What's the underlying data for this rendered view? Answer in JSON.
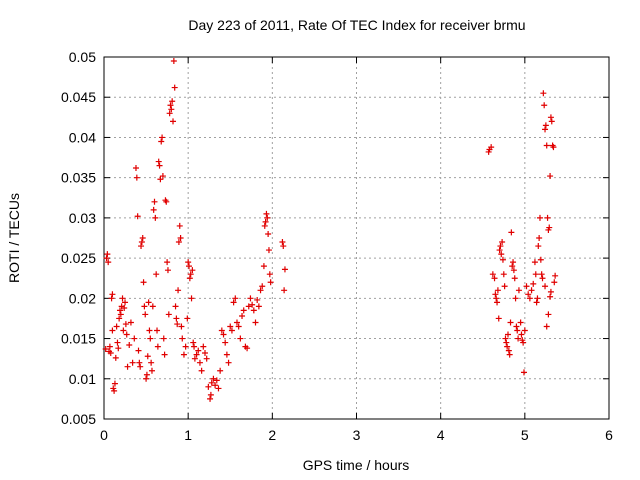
{
  "chart_data": {
    "type": "scatter",
    "title": "Day 223 of 2011, Rate Of TEC Index for receiver brmu",
    "xlabel": "GPS time / hours",
    "ylabel": "ROTI / TECUs",
    "xlim": [
      0,
      6
    ],
    "ylim": [
      0.005,
      0.05
    ],
    "xticks": [
      "0",
      "1",
      "2",
      "3",
      "4",
      "5",
      "6"
    ],
    "yticks": [
      "0.005",
      "0.01",
      "0.015",
      "0.02",
      "0.025",
      "0.03",
      "0.035",
      "0.04",
      "0.045",
      "0.05"
    ],
    "grid": true,
    "marker": "+",
    "color": "#e00000",
    "series": [
      {
        "name": "ROTI",
        "points": [
          [
            0.02,
            0.0137
          ],
          [
            0.03,
            0.025
          ],
          [
            0.04,
            0.0255
          ],
          [
            0.05,
            0.0245
          ],
          [
            0.06,
            0.0134
          ],
          [
            0.07,
            0.014
          ],
          [
            0.08,
            0.0132
          ],
          [
            0.09,
            0.02
          ],
          [
            0.1,
            0.0205
          ],
          [
            0.1,
            0.016
          ],
          [
            0.11,
            0.0088
          ],
          [
            0.12,
            0.0085
          ],
          [
            0.13,
            0.0094
          ],
          [
            0.14,
            0.0126
          ],
          [
            0.15,
            0.0165
          ],
          [
            0.16,
            0.0145
          ],
          [
            0.17,
            0.0138
          ],
          [
            0.18,
            0.0175
          ],
          [
            0.19,
            0.0185
          ],
          [
            0.2,
            0.018
          ],
          [
            0.21,
            0.019
          ],
          [
            0.22,
            0.02
          ],
          [
            0.23,
            0.016
          ],
          [
            0.24,
            0.0188
          ],
          [
            0.25,
            0.0195
          ],
          [
            0.26,
            0.0168
          ],
          [
            0.27,
            0.0155
          ],
          [
            0.28,
            0.0115
          ],
          [
            0.3,
            0.0142
          ],
          [
            0.32,
            0.017
          ],
          [
            0.34,
            0.012
          ],
          [
            0.36,
            0.015
          ],
          [
            0.38,
            0.0362
          ],
          [
            0.39,
            0.035
          ],
          [
            0.4,
            0.0302
          ],
          [
            0.41,
            0.0135
          ],
          [
            0.42,
            0.012
          ],
          [
            0.43,
            0.0115
          ],
          [
            0.44,
            0.0265
          ],
          [
            0.45,
            0.027
          ],
          [
            0.46,
            0.0275
          ],
          [
            0.47,
            0.022
          ],
          [
            0.48,
            0.019
          ],
          [
            0.49,
            0.018
          ],
          [
            0.5,
            0.01
          ],
          [
            0.51,
            0.0105
          ],
          [
            0.52,
            0.0128
          ],
          [
            0.53,
            0.0195
          ],
          [
            0.54,
            0.016
          ],
          [
            0.55,
            0.015
          ],
          [
            0.56,
            0.012
          ],
          [
            0.57,
            0.011
          ],
          [
            0.58,
            0.019
          ],
          [
            0.59,
            0.031
          ],
          [
            0.6,
            0.032
          ],
          [
            0.61,
            0.03
          ],
          [
            0.62,
            0.023
          ],
          [
            0.63,
            0.016
          ],
          [
            0.64,
            0.014
          ],
          [
            0.65,
            0.037
          ],
          [
            0.66,
            0.0365
          ],
          [
            0.67,
            0.0348
          ],
          [
            0.68,
            0.0395
          ],
          [
            0.69,
            0.04
          ],
          [
            0.7,
            0.0352
          ],
          [
            0.71,
            0.015
          ],
          [
            0.72,
            0.013
          ],
          [
            0.73,
            0.0322
          ],
          [
            0.74,
            0.032
          ],
          [
            0.75,
            0.0245
          ],
          [
            0.76,
            0.0235
          ],
          [
            0.77,
            0.018
          ],
          [
            0.78,
            0.043
          ],
          [
            0.79,
            0.044
          ],
          [
            0.8,
            0.0435
          ],
          [
            0.81,
            0.0445
          ],
          [
            0.82,
            0.042
          ],
          [
            0.83,
            0.0495
          ],
          [
            0.84,
            0.0462
          ],
          [
            0.85,
            0.019
          ],
          [
            0.86,
            0.0175
          ],
          [
            0.87,
            0.0168
          ],
          [
            0.88,
            0.021
          ],
          [
            0.89,
            0.027
          ],
          [
            0.9,
            0.029
          ],
          [
            0.91,
            0.0275
          ],
          [
            0.92,
            0.0165
          ],
          [
            0.93,
            0.015
          ],
          [
            0.95,
            0.013
          ],
          [
            0.97,
            0.014
          ],
          [
            0.99,
            0.0175
          ],
          [
            1.0,
            0.0245
          ],
          [
            1.01,
            0.024
          ],
          [
            1.02,
            0.0225
          ],
          [
            1.03,
            0.023
          ],
          [
            1.04,
            0.02
          ],
          [
            1.05,
            0.0235
          ],
          [
            1.06,
            0.0145
          ],
          [
            1.07,
            0.014
          ],
          [
            1.08,
            0.0125
          ],
          [
            1.1,
            0.013
          ],
          [
            1.12,
            0.0135
          ],
          [
            1.14,
            0.012
          ],
          [
            1.16,
            0.011
          ],
          [
            1.18,
            0.014
          ],
          [
            1.2,
            0.0132
          ],
          [
            1.22,
            0.0125
          ],
          [
            1.24,
            0.009
          ],
          [
            1.26,
            0.0075
          ],
          [
            1.27,
            0.008
          ],
          [
            1.28,
            0.0095
          ],
          [
            1.3,
            0.01
          ],
          [
            1.32,
            0.0092
          ],
          [
            1.34,
            0.0098
          ],
          [
            1.36,
            0.0088
          ],
          [
            1.38,
            0.011
          ],
          [
            1.4,
            0.016
          ],
          [
            1.42,
            0.0155
          ],
          [
            1.44,
            0.0145
          ],
          [
            1.46,
            0.013
          ],
          [
            1.48,
            0.012
          ],
          [
            1.5,
            0.0165
          ],
          [
            1.52,
            0.016
          ],
          [
            1.54,
            0.0195
          ],
          [
            1.56,
            0.02
          ],
          [
            1.58,
            0.017
          ],
          [
            1.6,
            0.0165
          ],
          [
            1.62,
            0.015
          ],
          [
            1.64,
            0.0178
          ],
          [
            1.66,
            0.0185
          ],
          [
            1.68,
            0.014
          ],
          [
            1.7,
            0.0138
          ],
          [
            1.72,
            0.019
          ],
          [
            1.74,
            0.02
          ],
          [
            1.76,
            0.0192
          ],
          [
            1.78,
            0.0185
          ],
          [
            1.8,
            0.017
          ],
          [
            1.82,
            0.0198
          ],
          [
            1.84,
            0.019
          ],
          [
            1.86,
            0.021
          ],
          [
            1.88,
            0.0215
          ],
          [
            1.9,
            0.024
          ],
          [
            1.91,
            0.029
          ],
          [
            1.92,
            0.0295
          ],
          [
            1.93,
            0.0305
          ],
          [
            1.94,
            0.03
          ],
          [
            1.95,
            0.028
          ],
          [
            1.96,
            0.026
          ],
          [
            1.97,
            0.023
          ],
          [
            1.98,
            0.022
          ],
          [
            2.12,
            0.027
          ],
          [
            2.13,
            0.0265
          ],
          [
            2.14,
            0.021
          ],
          [
            2.15,
            0.0236
          ],
          [
            4.57,
            0.0382
          ],
          [
            4.58,
            0.0385
          ],
          [
            4.6,
            0.0388
          ],
          [
            4.62,
            0.023
          ],
          [
            4.64,
            0.0225
          ],
          [
            4.65,
            0.0205
          ],
          [
            4.66,
            0.02
          ],
          [
            4.67,
            0.0195
          ],
          [
            4.68,
            0.021
          ],
          [
            4.69,
            0.0175
          ],
          [
            4.7,
            0.026
          ],
          [
            4.71,
            0.0265
          ],
          [
            4.72,
            0.0255
          ],
          [
            4.73,
            0.027
          ],
          [
            4.74,
            0.0248
          ],
          [
            4.75,
            0.023
          ],
          [
            4.76,
            0.0215
          ],
          [
            4.77,
            0.015
          ],
          [
            4.78,
            0.0145
          ],
          [
            4.79,
            0.014
          ],
          [
            4.8,
            0.0155
          ],
          [
            4.81,
            0.0135
          ],
          [
            4.82,
            0.013
          ],
          [
            4.83,
            0.017
          ],
          [
            4.84,
            0.0282
          ],
          [
            4.85,
            0.024
          ],
          [
            4.86,
            0.0245
          ],
          [
            4.87,
            0.0235
          ],
          [
            4.88,
            0.0225
          ],
          [
            4.89,
            0.02
          ],
          [
            4.9,
            0.0165
          ],
          [
            4.91,
            0.016
          ],
          [
            4.92,
            0.015
          ],
          [
            4.93,
            0.021
          ],
          [
            4.95,
            0.017
          ],
          [
            4.96,
            0.0155
          ],
          [
            4.97,
            0.0148
          ],
          [
            4.98,
            0.0145
          ],
          [
            4.99,
            0.0108
          ],
          [
            5.0,
            0.016
          ],
          [
            5.02,
            0.0215
          ],
          [
            5.04,
            0.0205
          ],
          [
            5.06,
            0.02
          ],
          [
            5.08,
            0.021
          ],
          [
            5.1,
            0.0218
          ],
          [
            5.12,
            0.0245
          ],
          [
            5.13,
            0.023
          ],
          [
            5.14,
            0.0195
          ],
          [
            5.15,
            0.02
          ],
          [
            5.16,
            0.0265
          ],
          [
            5.17,
            0.0275
          ],
          [
            5.18,
            0.03
          ],
          [
            5.19,
            0.0248
          ],
          [
            5.2,
            0.023
          ],
          [
            5.21,
            0.0225
          ],
          [
            5.22,
            0.0455
          ],
          [
            5.23,
            0.044
          ],
          [
            5.24,
            0.041
          ],
          [
            5.25,
            0.0415
          ],
          [
            5.26,
            0.039
          ],
          [
            5.27,
            0.03
          ],
          [
            5.28,
            0.0285
          ],
          [
            5.29,
            0.0288
          ],
          [
            5.3,
            0.0352
          ],
          [
            5.31,
            0.0425
          ],
          [
            5.32,
            0.042
          ],
          [
            5.33,
            0.039
          ],
          [
            5.34,
            0.0388
          ],
          [
            5.35,
            0.022
          ],
          [
            5.36,
            0.0228
          ],
          [
            5.3,
            0.0202
          ],
          [
            5.31,
            0.0208
          ],
          [
            5.28,
            0.018
          ],
          [
            5.26,
            0.0165
          ],
          [
            5.24,
            0.0215
          ]
        ]
      }
    ]
  }
}
